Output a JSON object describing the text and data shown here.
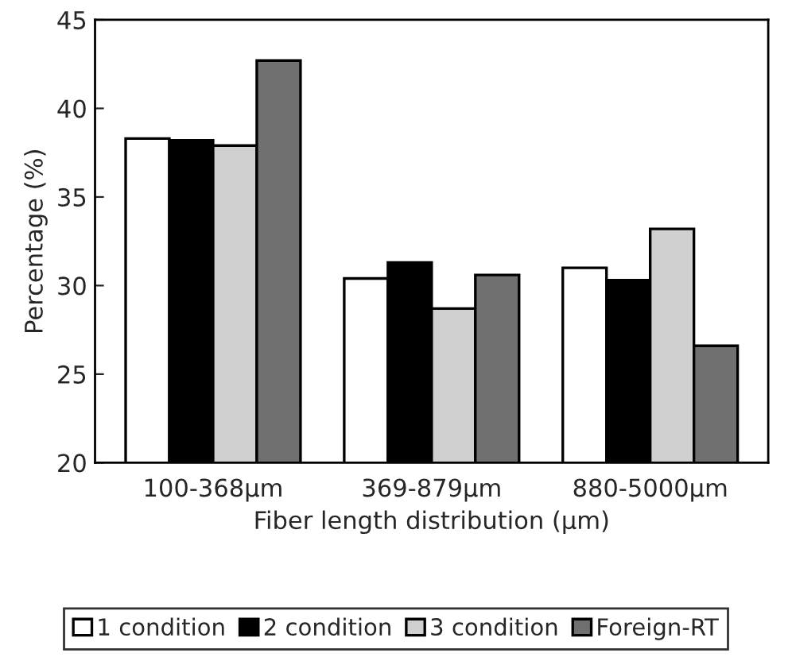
{
  "chart_data": {
    "type": "bar",
    "xlabel": "Fiber length distribution (µm)",
    "ylabel": "Percentage (%)",
    "categories": [
      "100-368µm",
      "369-879µm",
      "880-5000µm"
    ],
    "series": [
      {
        "name": "1 condition",
        "color": "#ffffff",
        "values": [
          38.3,
          30.4,
          31.0
        ]
      },
      {
        "name": "2 condition",
        "color": "#000000",
        "values": [
          38.2,
          31.3,
          30.3
        ]
      },
      {
        "name": "3 condition",
        "color": "#d0d0d0",
        "values": [
          37.9,
          28.7,
          33.2
        ]
      },
      {
        "name": "Foreign-RT",
        "color": "#707070",
        "values": [
          42.7,
          30.6,
          26.6
        ]
      }
    ],
    "ylim": [
      20,
      45
    ],
    "yticks": [
      20,
      25,
      30,
      35,
      40,
      45
    ],
    "grid": false,
    "legend": "bottom"
  }
}
